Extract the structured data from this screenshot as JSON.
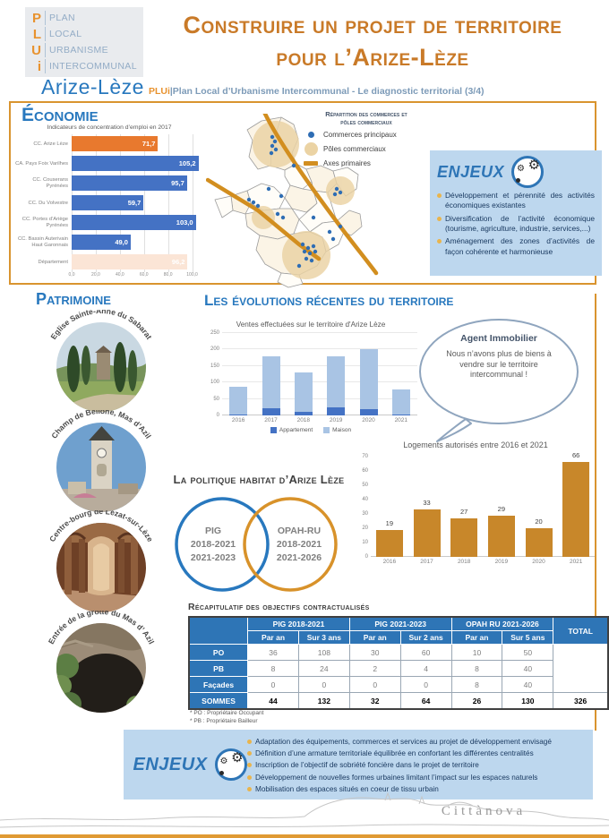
{
  "header": {
    "logo": {
      "letters": [
        "P",
        "L",
        "U",
        "i"
      ],
      "words": [
        "Plan",
        "Local",
        "Urbanisme",
        "Intercommunal"
      ],
      "territory": "Arize-Lèze"
    },
    "title_line1": "Construire un projet de territoire",
    "title_line2": "pour l’Arize-Lèze",
    "subtitle_brand": "Arize-Lèze",
    "subtitle_plui": "PLUi",
    "subtitle_rest": "|Plan Local d’Urbanisme Intercommunal - Le diagnostic territorial (3/4)"
  },
  "economie": {
    "heading": "Économie",
    "map_legend": {
      "title_line1": "Répartition des commerces et",
      "title_line2": "pôles commerciaux",
      "items": [
        "Commerces principaux",
        "Pôles commerciaux",
        "Axes primaires"
      ]
    },
    "enjeux": {
      "title": "ENJEUX",
      "bullets": [
        "Développement et pérennité des activités économiques existantes",
        "Diversification de l’activité économique (tourisme, agriculture, industrie, services,...)",
        "Aménagement des zones d’activités de façon cohérente et harmonieuse"
      ]
    }
  },
  "patrimoine": {
    "heading": "Patrimoine",
    "photos": [
      {
        "label": "Eglise Sainte-Anne du Sabarat"
      },
      {
        "label": "Champ de Bellone, Mas d’Azil"
      },
      {
        "label": "Centre-bourg de Lézat-sur-Lèze"
      },
      {
        "label": "Entrée de la grotte du Mas d’ Azil"
      }
    ]
  },
  "evolutions": {
    "heading": "Les évolutions récentes du territoire",
    "bubble": {
      "title": "Agent Immobilier",
      "text": "Nous n’avons plus de biens à vendre sur le territoire intercommunal !"
    },
    "politique": {
      "heading": "La politique habitat d’Arize Lèze",
      "venn_left": [
        "PIG",
        "2018-2021",
        "2021-2023"
      ],
      "venn_right": [
        "OPAH-RU",
        "2018-2021",
        "2021-2026"
      ]
    },
    "table": {
      "title": "Récapitulatif des objectifs contractualisés",
      "col_groups": [
        "PIG 2018-2021",
        "PIG 2021-2023",
        "OPAH RU 2021-2026"
      ],
      "total_label": "TOTAL",
      "sub_headers": [
        "Par an",
        "Sur 3 ans",
        "Par an",
        "Sur 2 ans",
        "Par an",
        "Sur 5 ans"
      ],
      "rows": [
        {
          "label": "PO",
          "cells": [
            "36",
            "108",
            "30",
            "60",
            "10",
            "50"
          ]
        },
        {
          "label": "PB",
          "cells": [
            "8",
            "24",
            "2",
            "4",
            "8",
            "40"
          ]
        },
        {
          "label": "Façades",
          "cells": [
            "0",
            "0",
            "0",
            "0",
            "8",
            "40"
          ]
        },
        {
          "label": "SOMMES",
          "cells": [
            "44",
            "132",
            "32",
            "64",
            "26",
            "130"
          ],
          "total": "326"
        }
      ],
      "footnotes": [
        "* PO : Propriétaire Occupant",
        "* PB : Propriétaire Bailleur"
      ]
    },
    "enjeux": {
      "title": "ENJEUX",
      "bullets": [
        "Adaptation des équipements, commerces et services au projet de développement envisagé",
        "Définition d’une armature territoriale équilibrée en confortant les différentes centralités",
        "Inscription de l’objectif de sobriété foncière dans le projet de territoire",
        "Développement de nouvelles formes urbaines limitant l’impact sur les espaces naturels",
        "Mobilisation des espaces situés en coeur de tissu urbain"
      ]
    }
  },
  "footer": {
    "brand": "Cittànova"
  },
  "colors": {
    "title_orange": "#C97A28",
    "accent_orange": "#D9942F",
    "heading_blue": "#2878BE",
    "bar_blue": "#4472C4",
    "bar_orange_highlight": "#E8792E",
    "bar_pale": "#FBE5D6",
    "enjeux_bg": "#BDD7EE",
    "table_header_blue": "#2E75B6",
    "logements_orange": "#C8872A",
    "maison_light_blue": "#A9C4E4"
  },
  "chart_data": [
    {
      "id": "emploi",
      "type": "bar",
      "orientation": "horizontal",
      "title": "Indicateurs de concentration d’emploi en 2017",
      "categories": [
        "CC. Arize Lèze",
        "CA. Pays Foix Varilhes",
        "CC. Couserans Pyrénées",
        "CC. Du Volvestre",
        "CC. Portes d’Ariège Pyrénées",
        "CC. Bassin Auterivain Haut Garonnais",
        "Département"
      ],
      "values": [
        71.7,
        105.2,
        95.7,
        59.7,
        103.0,
        49.0,
        96.2
      ],
      "value_labels": [
        "71,7",
        "105,2",
        "95,7",
        "59,7",
        "103,0",
        "49,0",
        "96,2"
      ],
      "bar_colors": [
        "#E8792E",
        "#4472C4",
        "#4472C4",
        "#4472C4",
        "#4472C4",
        "#4472C4",
        "#FBE5D6"
      ],
      "xlim": [
        0,
        110
      ],
      "x_ticks": [
        "0,0",
        "20,0",
        "40,0",
        "60,0",
        "80,0",
        "100,0"
      ],
      "x_tick_values": [
        0,
        20,
        40,
        60,
        80,
        100
      ],
      "grid": true
    },
    {
      "id": "ventes",
      "type": "bar",
      "stacked": true,
      "title": "Ventes effectuées sur le territoire d'Arize Lèze",
      "categories": [
        "2016",
        "2017",
        "2018",
        "2019",
        "2020",
        "2021"
      ],
      "series": [
        {
          "name": "Appartement",
          "color": "#4472C4",
          "values": [
            3,
            22,
            12,
            25,
            18,
            4
          ]
        },
        {
          "name": "Maison",
          "color": "#A9C4E4",
          "values": [
            85,
            158,
            118,
            155,
            182,
            74
          ]
        }
      ],
      "ylim": [
        0,
        250
      ],
      "y_ticks": [
        0,
        50,
        100,
        150,
        200,
        250
      ],
      "grid": true,
      "legend_position": "bottom"
    },
    {
      "id": "logements",
      "type": "bar",
      "orientation": "vertical",
      "title": "Logements autorisés entre 2016 et 2021",
      "categories": [
        "2016",
        "2017",
        "2018",
        "2019",
        "2020",
        "2021"
      ],
      "values": [
        19,
        33,
        27,
        29,
        20,
        66
      ],
      "bar_color": "#C8872A",
      "ylim": [
        0,
        70
      ],
      "y_ticks": [
        0,
        10,
        20,
        30,
        40,
        50,
        60,
        70
      ],
      "grid": false
    }
  ]
}
